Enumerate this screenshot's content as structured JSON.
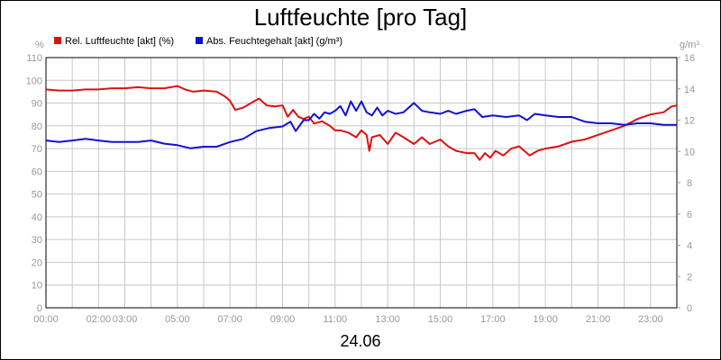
{
  "chart_data": {
    "type": "line",
    "title": "Luftfeuchte [pro Tag]",
    "date_label": "24.06",
    "x_range_hours": [
      0,
      24
    ],
    "x_ticks": [
      {
        "hour": 0,
        "label": "00:00"
      },
      {
        "hour": 2,
        "label": "02:00"
      },
      {
        "hour": 3,
        "label": "03:00"
      },
      {
        "hour": 5,
        "label": "05:00"
      },
      {
        "hour": 7,
        "label": "07:00"
      },
      {
        "hour": 9,
        "label": "09:00"
      },
      {
        "hour": 11,
        "label": "11:00"
      },
      {
        "hour": 13,
        "label": "13:00"
      },
      {
        "hour": 15,
        "label": "15:00"
      },
      {
        "hour": 17,
        "label": "17:00"
      },
      {
        "hour": 19,
        "label": "19:00"
      },
      {
        "hour": 21,
        "label": "21:00"
      },
      {
        "hour": 23,
        "label": "23:00"
      }
    ],
    "y_left": {
      "unit": "%",
      "range": [
        0,
        110
      ],
      "ticks": [
        0,
        10,
        20,
        30,
        40,
        50,
        60,
        70,
        80,
        90,
        100,
        110
      ]
    },
    "y_right": {
      "unit": "g/m³",
      "range": [
        0,
        16
      ],
      "ticks": [
        0,
        2,
        4,
        6,
        8,
        10,
        12,
        14,
        16
      ]
    },
    "grid": true,
    "legend_position": "top-left",
    "series": [
      {
        "name": "Rel. Luftfeuchte [akt] (%)",
        "color": "#e01010",
        "axis": "left",
        "points": [
          [
            0.0,
            96
          ],
          [
            0.5,
            95.5
          ],
          [
            1.0,
            95.5
          ],
          [
            1.5,
            96
          ],
          [
            2.0,
            96
          ],
          [
            2.5,
            96.5
          ],
          [
            3.0,
            96.5
          ],
          [
            3.5,
            97
          ],
          [
            4.0,
            96.5
          ],
          [
            4.5,
            96.5
          ],
          [
            5.0,
            97.5
          ],
          [
            5.3,
            96
          ],
          [
            5.6,
            95
          ],
          [
            6.0,
            95.5
          ],
          [
            6.5,
            95
          ],
          [
            6.8,
            93
          ],
          [
            7.0,
            91
          ],
          [
            7.2,
            87
          ],
          [
            7.5,
            88
          ],
          [
            7.8,
            90
          ],
          [
            8.1,
            92
          ],
          [
            8.4,
            89
          ],
          [
            8.7,
            88.5
          ],
          [
            9.0,
            89
          ],
          [
            9.2,
            84
          ],
          [
            9.4,
            87
          ],
          [
            9.6,
            84
          ],
          [
            9.8,
            83
          ],
          [
            10.0,
            84
          ],
          [
            10.2,
            81
          ],
          [
            10.5,
            82
          ],
          [
            10.8,
            80
          ],
          [
            11.0,
            78
          ],
          [
            11.2,
            78
          ],
          [
            11.5,
            77
          ],
          [
            11.8,
            75
          ],
          [
            12.0,
            78
          ],
          [
            12.2,
            76
          ],
          [
            12.3,
            69
          ],
          [
            12.4,
            75
          ],
          [
            12.7,
            76
          ],
          [
            13.0,
            72
          ],
          [
            13.3,
            77
          ],
          [
            13.6,
            75
          ],
          [
            14.0,
            72
          ],
          [
            14.3,
            75
          ],
          [
            14.6,
            72
          ],
          [
            15.0,
            74
          ],
          [
            15.3,
            71
          ],
          [
            15.6,
            69
          ],
          [
            16.0,
            68
          ],
          [
            16.3,
            68
          ],
          [
            16.5,
            65
          ],
          [
            16.7,
            68
          ],
          [
            16.9,
            66
          ],
          [
            17.1,
            69
          ],
          [
            17.4,
            67
          ],
          [
            17.7,
            70
          ],
          [
            18.0,
            71
          ],
          [
            18.2,
            69
          ],
          [
            18.4,
            67
          ],
          [
            18.7,
            69
          ],
          [
            19.0,
            70
          ],
          [
            19.5,
            71
          ],
          [
            20.0,
            73
          ],
          [
            20.5,
            74
          ],
          [
            21.0,
            76
          ],
          [
            21.5,
            78
          ],
          [
            22.0,
            80
          ],
          [
            22.5,
            83
          ],
          [
            23.0,
            85
          ],
          [
            23.5,
            86
          ],
          [
            23.8,
            88.5
          ],
          [
            24.0,
            89
          ]
        ]
      },
      {
        "name": "Abs. Feuchtegehalt [akt] (g/m³)",
        "color": "#1010d8",
        "axis": "right",
        "points": [
          [
            0.0,
            10.7
          ],
          [
            0.5,
            10.6
          ],
          [
            1.0,
            10.7
          ],
          [
            1.5,
            10.8
          ],
          [
            2.0,
            10.7
          ],
          [
            2.5,
            10.6
          ],
          [
            3.0,
            10.6
          ],
          [
            3.5,
            10.6
          ],
          [
            4.0,
            10.7
          ],
          [
            4.5,
            10.5
          ],
          [
            5.0,
            10.4
          ],
          [
            5.5,
            10.2
          ],
          [
            6.0,
            10.3
          ],
          [
            6.5,
            10.3
          ],
          [
            7.0,
            10.6
          ],
          [
            7.5,
            10.8
          ],
          [
            8.0,
            11.3
          ],
          [
            8.5,
            11.5
          ],
          [
            9.0,
            11.6
          ],
          [
            9.3,
            11.9
          ],
          [
            9.5,
            11.3
          ],
          [
            9.8,
            12.0
          ],
          [
            10.0,
            12.0
          ],
          [
            10.2,
            12.4
          ],
          [
            10.4,
            12.1
          ],
          [
            10.6,
            12.5
          ],
          [
            10.8,
            12.4
          ],
          [
            11.0,
            12.6
          ],
          [
            11.2,
            12.9
          ],
          [
            11.4,
            12.3
          ],
          [
            11.6,
            13.2
          ],
          [
            11.8,
            12.6
          ],
          [
            12.0,
            13.2
          ],
          [
            12.2,
            12.5
          ],
          [
            12.4,
            12.3
          ],
          [
            12.6,
            12.8
          ],
          [
            12.8,
            12.3
          ],
          [
            13.0,
            12.6
          ],
          [
            13.3,
            12.4
          ],
          [
            13.6,
            12.5
          ],
          [
            14.0,
            13.1
          ],
          [
            14.3,
            12.6
          ],
          [
            14.6,
            12.5
          ],
          [
            15.0,
            12.4
          ],
          [
            15.3,
            12.6
          ],
          [
            15.6,
            12.4
          ],
          [
            16.0,
            12.6
          ],
          [
            16.3,
            12.7
          ],
          [
            16.6,
            12.2
          ],
          [
            17.0,
            12.3
          ],
          [
            17.5,
            12.2
          ],
          [
            18.0,
            12.3
          ],
          [
            18.3,
            12.0
          ],
          [
            18.6,
            12.4
          ],
          [
            19.0,
            12.3
          ],
          [
            19.5,
            12.2
          ],
          [
            20.0,
            12.2
          ],
          [
            20.5,
            11.9
          ],
          [
            21.0,
            11.8
          ],
          [
            21.5,
            11.8
          ],
          [
            22.0,
            11.7
          ],
          [
            22.5,
            11.8
          ],
          [
            23.0,
            11.8
          ],
          [
            23.5,
            11.7
          ],
          [
            24.0,
            11.7
          ]
        ]
      }
    ]
  }
}
